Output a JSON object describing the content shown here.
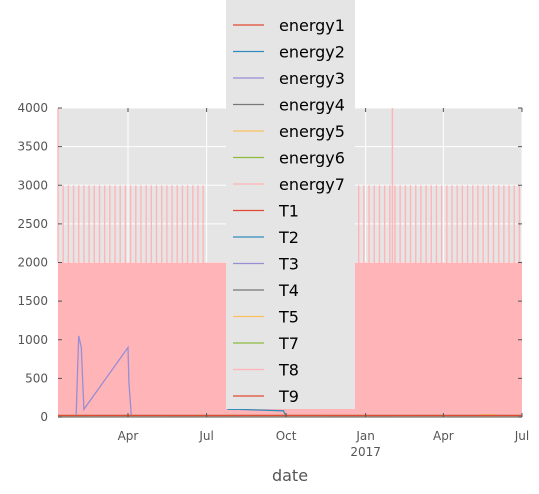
{
  "chart_data": {
    "type": "line",
    "xlabel": "date",
    "ylabel": "",
    "ylim": [
      0,
      4000
    ],
    "xlim": [
      "2016-01-11",
      "2017-07-01"
    ],
    "grid": true,
    "background": "#e5e5e5",
    "y_ticks": [
      "0",
      "500",
      "1000",
      "1500",
      "2000",
      "2500",
      "3000",
      "3500",
      "4000"
    ],
    "x_ticks": [
      {
        "date": "2016-04-01",
        "label": "Apr",
        "sublabel": ""
      },
      {
        "date": "2016-07-01",
        "label": "Jul",
        "sublabel": ""
      },
      {
        "date": "2016-10-01",
        "label": "Oct",
        "sublabel": ""
      },
      {
        "date": "2017-01-01",
        "label": "Jan",
        "sublabel": "2017"
      },
      {
        "date": "2017-04-01",
        "label": "Apr",
        "sublabel": ""
      },
      {
        "date": "2017-07-01",
        "label": "Jul",
        "sublabel": ""
      }
    ],
    "legend_position": "top-center",
    "series": [
      {
        "name": "energy1",
        "color": "#e24a33",
        "points": [
          [
            "2016-01-11",
            15
          ],
          [
            "2016-04-01",
            20
          ],
          [
            "2016-07-01",
            15
          ],
          [
            "2016-10-01",
            20
          ],
          [
            "2017-01-01",
            15
          ],
          [
            "2017-04-01",
            20
          ],
          [
            "2017-07-01",
            18
          ]
        ]
      },
      {
        "name": "energy2",
        "color": "#348abd",
        "points": [
          [
            "2016-07-25",
            100
          ],
          [
            "2016-08-05",
            100
          ],
          [
            "2016-09-28",
            80
          ],
          [
            "2016-10-01",
            0
          ]
        ]
      },
      {
        "name": "energy3",
        "color": "#988ed5",
        "points": [
          [
            "2016-02-01",
            0
          ],
          [
            "2016-02-04",
            1050
          ],
          [
            "2016-02-07",
            900
          ],
          [
            "2016-02-10",
            100
          ],
          [
            "2016-04-01",
            900
          ],
          [
            "2016-04-02",
            450
          ],
          [
            "2016-04-05",
            0
          ]
        ]
      },
      {
        "name": "energy4",
        "color": "#777777",
        "points": [
          [
            "2016-01-11",
            0
          ],
          [
            "2017-07-01",
            0
          ]
        ]
      },
      {
        "name": "energy5",
        "color": "#fbc15e",
        "points": [
          [
            "2017-05-15",
            30
          ],
          [
            "2017-06-01",
            30
          ]
        ]
      },
      {
        "name": "energy6",
        "color": "#8eba42",
        "points": [
          [
            "2017-05-15",
            20
          ],
          [
            "2017-06-01",
            20
          ]
        ]
      },
      {
        "name": "energy7",
        "color": "#ffb5b8",
        "points": [
          [
            "2016-01-11",
            4000
          ],
          [
            "2016-02-20",
            4000
          ],
          [
            "2016-06-01",
            3000
          ],
          [
            "2016-09-01",
            3000
          ],
          [
            "2017-02-01",
            4000
          ],
          [
            "2017-05-01",
            3000
          ],
          [
            "2017-07-01",
            2000
          ]
        ]
      },
      {
        "name": "T1",
        "color": "#e24a33",
        "points": [
          [
            "2016-01-11",
            20
          ],
          [
            "2017-07-01",
            20
          ]
        ]
      },
      {
        "name": "T2",
        "color": "#348abd",
        "points": [
          [
            "2016-01-11",
            20
          ],
          [
            "2017-07-01",
            20
          ]
        ]
      },
      {
        "name": "T3",
        "color": "#988ed5",
        "points": [
          [
            "2016-01-11",
            20
          ],
          [
            "2017-07-01",
            20
          ]
        ]
      },
      {
        "name": "T4",
        "color": "#777777",
        "points": [
          [
            "2016-01-11",
            20
          ],
          [
            "2017-07-01",
            20
          ]
        ]
      },
      {
        "name": "T5",
        "color": "#fbc15e",
        "points": [
          [
            "2016-01-11",
            20
          ],
          [
            "2017-07-01",
            20
          ]
        ]
      },
      {
        "name": "T7",
        "color": "#8eba42",
        "points": [
          [
            "2016-01-11",
            20
          ],
          [
            "2017-07-01",
            20
          ]
        ]
      },
      {
        "name": "T8",
        "color": "#ffb5b8",
        "points": [
          [
            "2016-01-11",
            20
          ],
          [
            "2017-07-01",
            20
          ]
        ]
      },
      {
        "name": "T9",
        "color": "#e24a33",
        "points": [
          [
            "2016-01-11",
            20
          ],
          [
            "2017-07-01",
            20
          ]
        ]
      }
    ]
  }
}
